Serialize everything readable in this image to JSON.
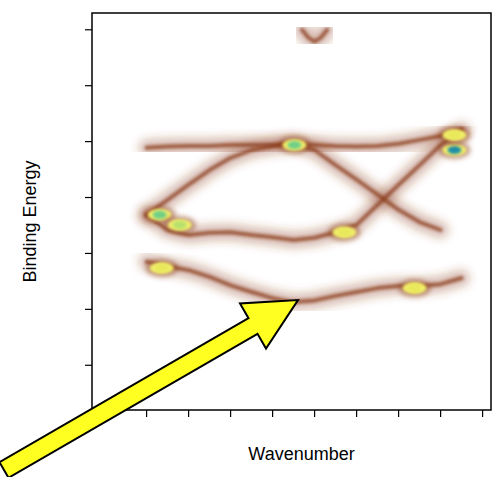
{
  "chart_data": {
    "type": "line",
    "x_label": "Wavenumber",
    "y_label": "Binding Energy",
    "xlim": [
      -0.3,
      9.2
    ],
    "ylim": [
      0.2,
      7.3
    ],
    "xticks": [
      1,
      2,
      3,
      4,
      5,
      6,
      7,
      8,
      9
    ],
    "yticks": [
      1,
      2,
      3,
      4,
      5,
      6,
      7
    ],
    "tick_labels": false,
    "grid": false,
    "series": [
      {
        "type": "line",
        "color": "#8b3a1a",
        "x": [
          1,
          1.5,
          2,
          2.5,
          3,
          3.5,
          4,
          4.5,
          5,
          5.5,
          6,
          6.5,
          7,
          7.5,
          8,
          8.5
        ],
        "values": [
          4.89,
          4.91,
          4.92,
          4.92,
          4.94,
          4.94,
          4.94,
          4.96,
          4.94,
          4.92,
          4.91,
          4.92,
          4.96,
          5.03,
          5.1,
          5.21
        ]
      },
      {
        "type": "line",
        "color": "#8b3a1a",
        "x": [
          1,
          1.5,
          2,
          2.5,
          3,
          3.5,
          4,
          4.5,
          5,
          5.5,
          6,
          6.5,
          7,
          7.5,
          8
        ],
        "values": [
          3.69,
          3.96,
          4.23,
          4.49,
          4.71,
          4.85,
          4.92,
          4.96,
          4.85,
          4.58,
          4.32,
          4.05,
          3.78,
          3.56,
          3.42
        ]
      },
      {
        "type": "line",
        "color": "#8b3a1a",
        "x": [
          1,
          1.5,
          2,
          2.5,
          3,
          3.5,
          4,
          4.5,
          5,
          5.5,
          6,
          6.5,
          7,
          7.5,
          8,
          8.5
        ],
        "values": [
          3.69,
          3.42,
          3.33,
          3.37,
          3.38,
          3.33,
          3.29,
          3.24,
          3.28,
          3.38,
          3.51,
          3.87,
          4.23,
          4.58,
          4.94,
          5.21
        ]
      },
      {
        "type": "line",
        "color": "#8b3a1a",
        "x": [
          1,
          1.5,
          2,
          2.5,
          3,
          3.5,
          4,
          4.5,
          5,
          5.5,
          6,
          6.5,
          7,
          7.5,
          8,
          8.5
        ],
        "values": [
          2.85,
          2.77,
          2.7,
          2.58,
          2.43,
          2.31,
          2.2,
          2.13,
          2.16,
          2.24,
          2.31,
          2.38,
          2.42,
          2.42,
          2.45,
          2.56
        ]
      },
      {
        "type": "line",
        "color": "#8b3a1a",
        "x": [
          4.7,
          4.85,
          5,
          5.15,
          5.3
        ],
        "values": [
          7.0,
          6.86,
          6.79,
          6.86,
          7.0
        ]
      },
      {
        "type": "scatter",
        "marker": "blob",
        "x": [
          1.31,
          1.79,
          4.52,
          8.33,
          8.33,
          5.71,
          7.38,
          1.36
        ],
        "values": [
          3.69,
          3.51,
          4.94,
          4.85,
          5.12,
          3.38,
          2.38,
          2.74
        ],
        "colors": [
          "#6fcf86",
          "#b6e06a",
          "#6fcf86",
          "#1f8fa8",
          "#e8e85a",
          "#e8e85a",
          "#e8e85a",
          "#e8e85a"
        ]
      }
    ]
  }
}
